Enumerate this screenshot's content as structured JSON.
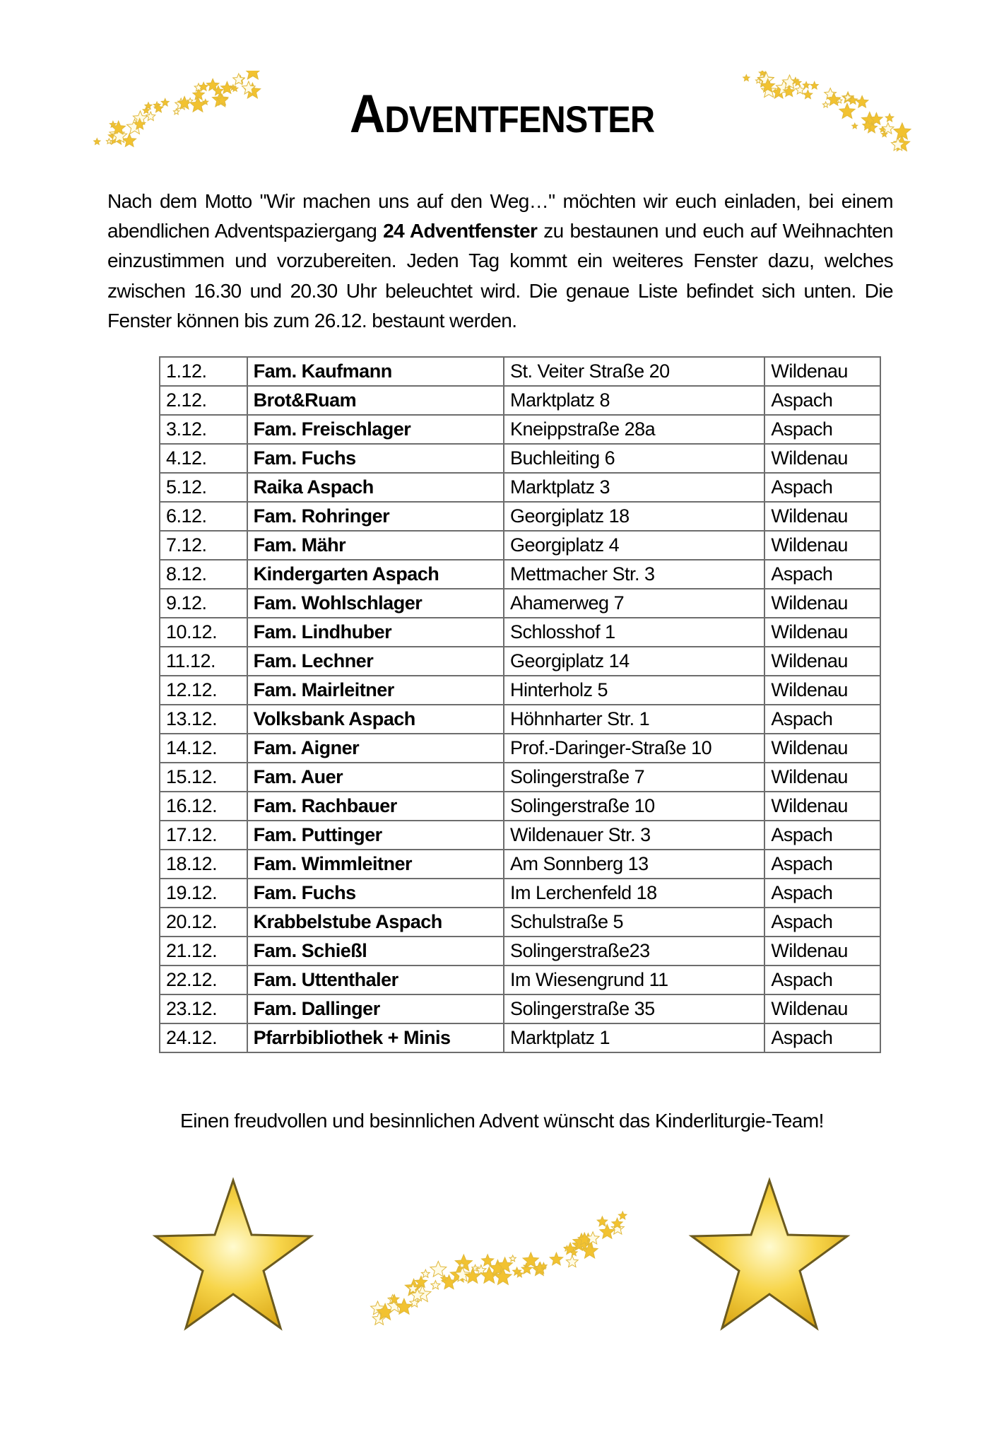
{
  "title": "Adventfenster",
  "intro": {
    "before": "Nach dem Motto \"Wir machen uns auf den Weg…\" möchten wir euch einladen, bei einem abendlichen Adventspaziergang ",
    "bold": "24 Adventfenster",
    "after": " zu bestaunen und euch auf Weihnachten einzustimmen und vorzubereiten. Jeden Tag kommt ein weiteres Fenster dazu, welches zwischen 16.30 und 20.30 Uhr beleuchtet wird. Die genaue Liste befindet sich unten. Die Fenster können bis zum 26.12. bestaunt werden."
  },
  "rows": [
    {
      "date": "1.12.",
      "host": "Fam. Kaufmann",
      "address": "St. Veiter Straße 20",
      "place": "Wildenau"
    },
    {
      "date": "2.12.",
      "host": "Brot&Ruam",
      "address": "Marktplatz 8",
      "place": "Aspach"
    },
    {
      "date": "3.12.",
      "host": "Fam. Freischlager",
      "address": "Kneippstraße 28a",
      "place": "Aspach"
    },
    {
      "date": "4.12.",
      "host": "Fam. Fuchs",
      "address": "Buchleiting 6",
      "place": "Wildenau"
    },
    {
      "date": "5.12.",
      "host": "Raika Aspach",
      "address": "Marktplatz 3",
      "place": "Aspach"
    },
    {
      "date": "6.12.",
      "host": "Fam. Rohringer",
      "address": "Georgiplatz 18",
      "place": "Wildenau"
    },
    {
      "date": "7.12.",
      "host": "Fam. Mähr",
      "address": "Georgiplatz 4",
      "place": "Wildenau"
    },
    {
      "date": "8.12.",
      "host": "Kindergarten Aspach",
      "address": "Mettmacher Str. 3",
      "place": "Aspach"
    },
    {
      "date": "9.12.",
      "host": "Fam. Wohlschlager",
      "address": "Ahamerweg 7",
      "place": "Wildenau"
    },
    {
      "date": "10.12.",
      "host": "Fam. Lindhuber",
      "address": "Schlosshof 1",
      "place": "Wildenau"
    },
    {
      "date": "11.12.",
      "host": "Fam. Lechner",
      "address": "Georgiplatz 14",
      "place": "Wildenau"
    },
    {
      "date": "12.12.",
      "host": "Fam. Mairleitner",
      "address": "Hinterholz 5",
      "place": "Wildenau"
    },
    {
      "date": "13.12.",
      "host": "Volksbank Aspach",
      "address": "Höhnharter Str. 1",
      "place": "Aspach"
    },
    {
      "date": "14.12.",
      "host": "Fam. Aigner",
      "address": "Prof.-Daringer-Straße 10",
      "place": "Wildenau"
    },
    {
      "date": "15.12.",
      "host": "Fam. Auer",
      "address": "Solingerstraße 7",
      "place": "Wildenau"
    },
    {
      "date": "16.12.",
      "host": "Fam. Rachbauer",
      "address": "Solingerstraße 10",
      "place": "Wildenau"
    },
    {
      "date": "17.12.",
      "host": "Fam. Puttinger",
      "address": "Wildenauer Str. 3",
      "place": "Aspach"
    },
    {
      "date": "18.12.",
      "host": "Fam. Wimmleitner",
      "address": "Am Sonnberg 13",
      "place": "Aspach"
    },
    {
      "date": "19.12.",
      "host": "Fam. Fuchs",
      "address": "Im Lerchenfeld 18",
      "place": "Aspach"
    },
    {
      "date": "20.12.",
      "host": "Krabbelstube Aspach",
      "address": "Schulstraße 5",
      "place": "Aspach"
    },
    {
      "date": "21.12.",
      "host": "Fam. Schießl",
      "address": "Solingerstraße23",
      "place": "Wildenau"
    },
    {
      "date": "22.12.",
      "host": "Fam. Uttenthaler",
      "address": "Im Wiesengrund 11",
      "place": "Aspach"
    },
    {
      "date": "23.12.",
      "host": "Fam. Dallinger",
      "address": "Solingerstraße 35",
      "place": "Wildenau"
    },
    {
      "date": "24.12.",
      "host": "Pfarrbibliothek + Minis",
      "address": "Marktplatz 1",
      "place": "Aspach"
    }
  ],
  "footer": "Einen freudvollen und besinnlichen Advent wünscht das Kinderliturgie-Team!",
  "colors": {
    "star_gold": "#f2c230",
    "star_light": "#fff3a0",
    "star_edge": "#6b5a1e"
  }
}
